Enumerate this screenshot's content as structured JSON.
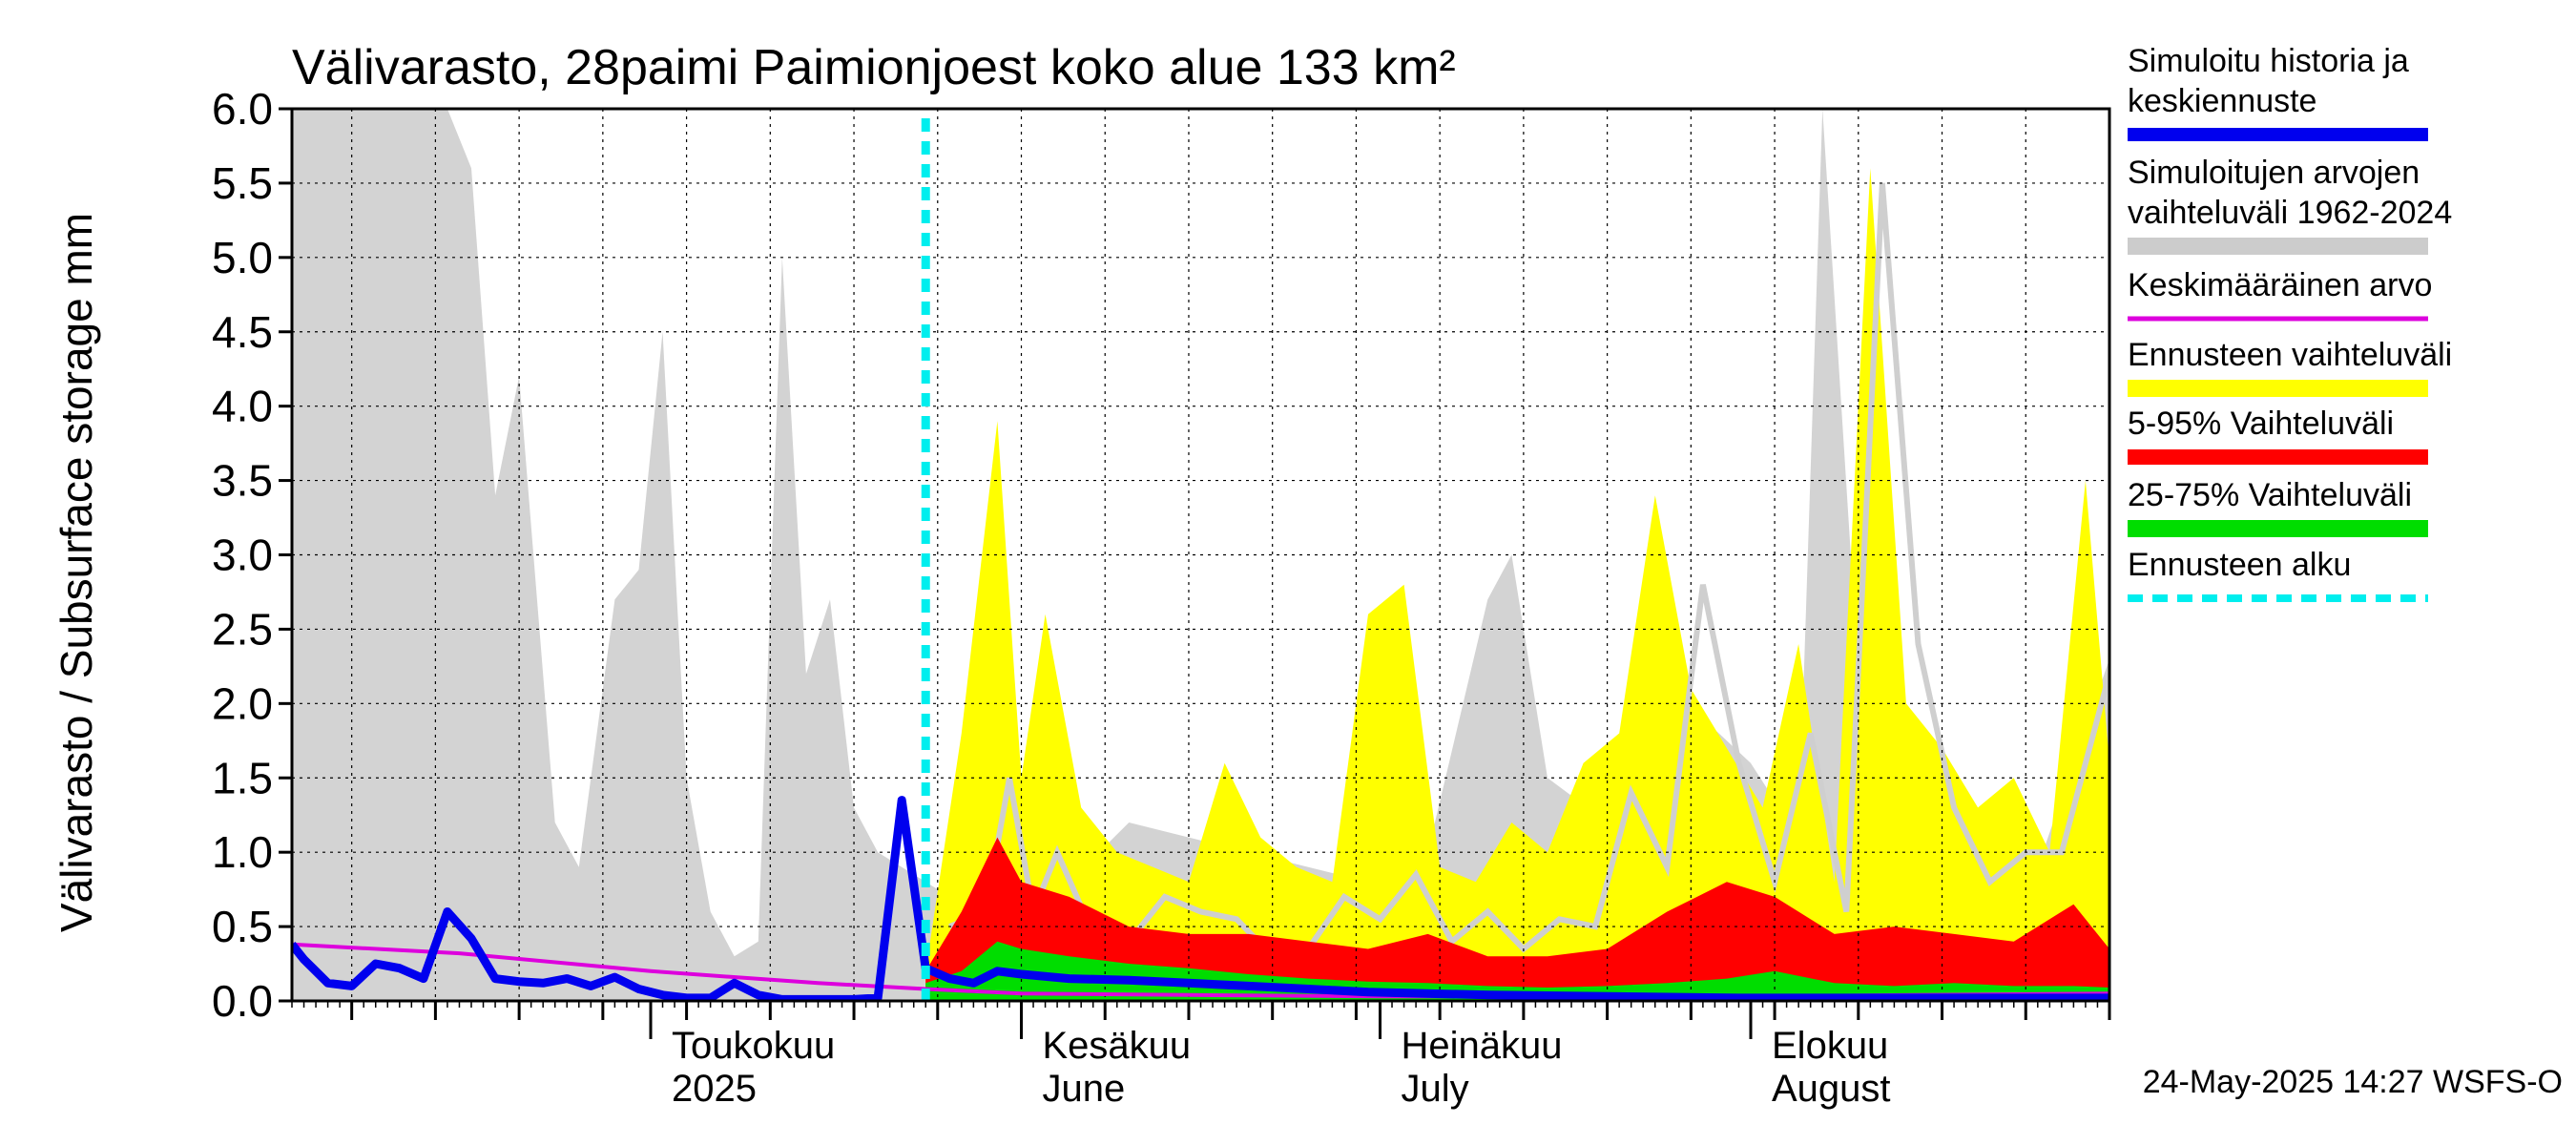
{
  "chart_data": {
    "type": "area",
    "title": "Välivarasto, 28paimi Paimionjoest koko alue 133 km²",
    "ylabel": "Välivarasto / Subsurface storage  mm",
    "ylim": [
      0.0,
      6.0
    ],
    "yticks": [
      "0.0",
      "0.5",
      "1.0",
      "1.5",
      "2.0",
      "2.5",
      "3.0",
      "3.5",
      "4.0",
      "4.5",
      "5.0",
      "5.5",
      "6.0"
    ],
    "x_start": "2025-04-01",
    "x_end": "2025-08-31",
    "forecast_start": "2025-05-24",
    "month_labels": [
      {
        "date": "2025-05-01",
        "line1": "Toukokuu",
        "line2": "2025"
      },
      {
        "date": "2025-06-01",
        "line1": "Kesäkuu",
        "line2": "June"
      },
      {
        "date": "2025-07-01",
        "line1": "Heinäkuu",
        "line2": "July"
      },
      {
        "date": "2025-08-01",
        "line1": "Elokuu",
        "line2": "August"
      }
    ],
    "legend": [
      {
        "label": "Simuloitu historia ja keskiennuste",
        "color": "#0000ee"
      },
      {
        "label": "Simuloitujen arvojen vaihteluväli 1962-2024",
        "color": "#cccccc"
      },
      {
        "label": "Keskimääräinen arvo",
        "color": "#dd00dd"
      },
      {
        "label": "Ennusteen vaihteluväli",
        "color": "#ffff00"
      },
      {
        "label": "5-95% Vaihteluväli",
        "color": "#ff0000"
      },
      {
        "label": "25-75% Vaihteluväli",
        "color": "#00dd00"
      },
      {
        "label": "Ennusteen alku",
        "color": "#00eeee"
      }
    ],
    "series": [
      {
        "name": "Simulointujen arvojen vaihteluväli 1962-2024 (max)",
        "color": "#d3d3d3",
        "x": [
          "2025-04-01",
          "2025-04-03",
          "2025-04-05",
          "2025-04-07",
          "2025-04-09",
          "2025-04-11",
          "2025-04-14",
          "2025-04-16",
          "2025-04-18",
          "2025-04-20",
          "2025-04-23",
          "2025-04-25",
          "2025-04-28",
          "2025-04-30",
          "2025-05-02",
          "2025-05-04",
          "2025-05-06",
          "2025-05-08",
          "2025-05-10",
          "2025-05-12",
          "2025-05-14",
          "2025-05-16",
          "2025-05-18",
          "2025-05-20",
          "2025-05-22",
          "2025-05-24",
          "2025-05-26",
          "2025-05-28",
          "2025-05-30",
          "2025-06-01",
          "2025-06-05",
          "2025-06-10",
          "2025-06-15",
          "2025-06-20",
          "2025-06-25",
          "2025-06-30",
          "2025-07-05",
          "2025-07-10",
          "2025-07-12",
          "2025-07-15",
          "2025-07-20",
          "2025-07-25",
          "2025-07-28",
          "2025-08-01",
          "2025-08-05",
          "2025-08-07",
          "2025-08-10",
          "2025-08-15",
          "2025-08-20",
          "2025-08-25",
          "2025-08-31"
        ],
        "values": [
          6.0,
          6.0,
          6.0,
          6.0,
          6.0,
          6.0,
          6.0,
          5.6,
          3.4,
          4.2,
          1.2,
          0.9,
          2.7,
          2.9,
          4.5,
          1.5,
          0.6,
          0.3,
          0.4,
          5.0,
          2.2,
          2.7,
          1.3,
          1.0,
          0.9,
          0.8,
          0.7,
          0.7,
          0.7,
          0.6,
          0.8,
          1.2,
          1.1,
          1.0,
          0.9,
          0.8,
          1.0,
          2.7,
          3.0,
          1.5,
          1.2,
          1.4,
          1.9,
          1.6,
          1.1,
          6.0,
          2.2,
          1.6,
          1.2,
          0.9,
          2.3
        ]
      },
      {
        "name": "Ennusteen vaihteluväli (max)",
        "color": "#ffff00",
        "x": [
          "2025-05-24",
          "2025-05-27",
          "2025-05-30",
          "2025-06-01",
          "2025-06-03",
          "2025-06-06",
          "2025-06-09",
          "2025-06-12",
          "2025-06-15",
          "2025-06-18",
          "2025-06-21",
          "2025-06-24",
          "2025-06-27",
          "2025-06-30",
          "2025-07-03",
          "2025-07-06",
          "2025-07-09",
          "2025-07-12",
          "2025-07-15",
          "2025-07-18",
          "2025-07-21",
          "2025-07-24",
          "2025-07-27",
          "2025-07-30",
          "2025-08-02",
          "2025-08-05",
          "2025-08-08",
          "2025-08-11",
          "2025-08-14",
          "2025-08-17",
          "2025-08-20",
          "2025-08-23",
          "2025-08-26",
          "2025-08-29",
          "2025-08-31"
        ],
        "values": [
          0.2,
          1.8,
          3.9,
          1.5,
          2.6,
          1.3,
          1.0,
          0.9,
          0.8,
          1.6,
          1.1,
          0.9,
          0.8,
          2.6,
          2.8,
          0.9,
          0.8,
          1.2,
          1.0,
          1.6,
          1.8,
          3.4,
          2.1,
          1.7,
          1.3,
          2.4,
          0.8,
          5.6,
          2.0,
          1.7,
          1.3,
          1.5,
          1.0,
          3.5,
          1.6
        ]
      },
      {
        "name": "5-95% Vaihteluväli (max)",
        "color": "#ff0000",
        "x": [
          "2025-05-24",
          "2025-05-27",
          "2025-05-30",
          "2025-06-01",
          "2025-06-05",
          "2025-06-10",
          "2025-06-15",
          "2025-06-20",
          "2025-06-25",
          "2025-06-30",
          "2025-07-05",
          "2025-07-10",
          "2025-07-15",
          "2025-07-20",
          "2025-07-25",
          "2025-07-30",
          "2025-08-03",
          "2025-08-08",
          "2025-08-13",
          "2025-08-18",
          "2025-08-23",
          "2025-08-28",
          "2025-08-31"
        ],
        "values": [
          0.2,
          0.6,
          1.1,
          0.8,
          0.7,
          0.5,
          0.45,
          0.45,
          0.4,
          0.35,
          0.45,
          0.3,
          0.3,
          0.35,
          0.6,
          0.8,
          0.7,
          0.45,
          0.5,
          0.45,
          0.4,
          0.65,
          0.35
        ]
      },
      {
        "name": "25-75% Vaihteluväli (max)",
        "color": "#00dd00",
        "x": [
          "2025-05-24",
          "2025-05-27",
          "2025-05-30",
          "2025-06-01",
          "2025-06-05",
          "2025-06-10",
          "2025-06-15",
          "2025-06-20",
          "2025-06-25",
          "2025-06-30",
          "2025-07-05",
          "2025-07-10",
          "2025-07-15",
          "2025-07-20",
          "2025-07-25",
          "2025-07-30",
          "2025-08-03",
          "2025-08-08",
          "2025-08-13",
          "2025-08-18",
          "2025-08-23",
          "2025-08-28",
          "2025-08-31"
        ],
        "values": [
          0.12,
          0.2,
          0.4,
          0.35,
          0.3,
          0.25,
          0.22,
          0.18,
          0.15,
          0.13,
          0.12,
          0.1,
          0.09,
          0.1,
          0.12,
          0.15,
          0.2,
          0.12,
          0.1,
          0.12,
          0.1,
          0.1,
          0.09
        ]
      },
      {
        "name": "Simuloitu historia ja keskiennuste",
        "color": "#0000ee",
        "x": [
          "2025-04-01",
          "2025-04-02",
          "2025-04-04",
          "2025-04-06",
          "2025-04-08",
          "2025-04-10",
          "2025-04-12",
          "2025-04-14",
          "2025-04-16",
          "2025-04-18",
          "2025-04-20",
          "2025-04-22",
          "2025-04-24",
          "2025-04-26",
          "2025-04-28",
          "2025-04-30",
          "2025-05-02",
          "2025-05-04",
          "2025-05-06",
          "2025-05-08",
          "2025-05-10",
          "2025-05-12",
          "2025-05-14",
          "2025-05-16",
          "2025-05-18",
          "2025-05-20",
          "2025-05-22",
          "2025-05-24",
          "2025-05-26",
          "2025-05-28",
          "2025-05-30",
          "2025-06-01",
          "2025-06-05",
          "2025-06-10",
          "2025-06-15",
          "2025-06-20",
          "2025-06-25",
          "2025-06-30",
          "2025-07-10",
          "2025-07-20",
          "2025-07-31",
          "2025-08-10",
          "2025-08-20",
          "2025-08-31"
        ],
        "values": [
          0.38,
          0.28,
          0.12,
          0.1,
          0.25,
          0.22,
          0.15,
          0.6,
          0.42,
          0.15,
          0.13,
          0.12,
          0.15,
          0.1,
          0.16,
          0.08,
          0.04,
          0.02,
          0.02,
          0.12,
          0.04,
          0.01,
          0.01,
          0.01,
          0.01,
          0.02,
          1.35,
          0.22,
          0.15,
          0.12,
          0.2,
          0.18,
          0.15,
          0.14,
          0.12,
          0.1,
          0.08,
          0.06,
          0.04,
          0.03,
          0.02,
          0.02,
          0.02,
          0.02
        ]
      },
      {
        "name": "Keskimääräinen arvo",
        "color": "#dd00dd",
        "x": [
          "2025-04-01",
          "2025-04-15",
          "2025-05-01",
          "2025-05-15",
          "2025-05-24",
          "2025-06-01",
          "2025-06-15",
          "2025-07-01",
          "2025-07-15",
          "2025-08-01",
          "2025-08-15",
          "2025-08-31"
        ],
        "values": [
          0.38,
          0.32,
          0.2,
          0.12,
          0.08,
          0.05,
          0.04,
          0.03,
          0.03,
          0.03,
          0.04,
          0.05
        ]
      },
      {
        "name": "Ennusteen mediaani (harmaa)",
        "color": "#cfcfcf",
        "x": [
          "2025-05-26",
          "2025-05-29",
          "2025-05-31",
          "2025-06-02",
          "2025-06-04",
          "2025-06-07",
          "2025-06-10",
          "2025-06-13",
          "2025-06-16",
          "2025-06-19",
          "2025-06-22",
          "2025-06-25",
          "2025-06-28",
          "2025-07-01",
          "2025-07-04",
          "2025-07-07",
          "2025-07-10",
          "2025-07-13",
          "2025-07-16",
          "2025-07-19",
          "2025-07-22",
          "2025-07-25",
          "2025-07-28",
          "2025-07-31",
          "2025-08-03",
          "2025-08-06",
          "2025-08-09",
          "2025-08-12",
          "2025-08-15",
          "2025-08-18",
          "2025-08-21",
          "2025-08-24",
          "2025-08-27",
          "2025-08-31"
        ],
        "values": [
          0.5,
          0.6,
          1.5,
          0.6,
          1.0,
          0.45,
          0.4,
          0.7,
          0.6,
          0.55,
          0.3,
          0.35,
          0.7,
          0.55,
          0.85,
          0.4,
          0.6,
          0.35,
          0.55,
          0.5,
          1.4,
          0.9,
          2.8,
          1.6,
          0.8,
          1.8,
          0.6,
          5.5,
          2.4,
          1.3,
          0.8,
          1.0,
          1.0,
          2.2
        ]
      }
    ]
  },
  "footer": {
    "timestamp": "24-May-2025 14:27 WSFS-O"
  }
}
